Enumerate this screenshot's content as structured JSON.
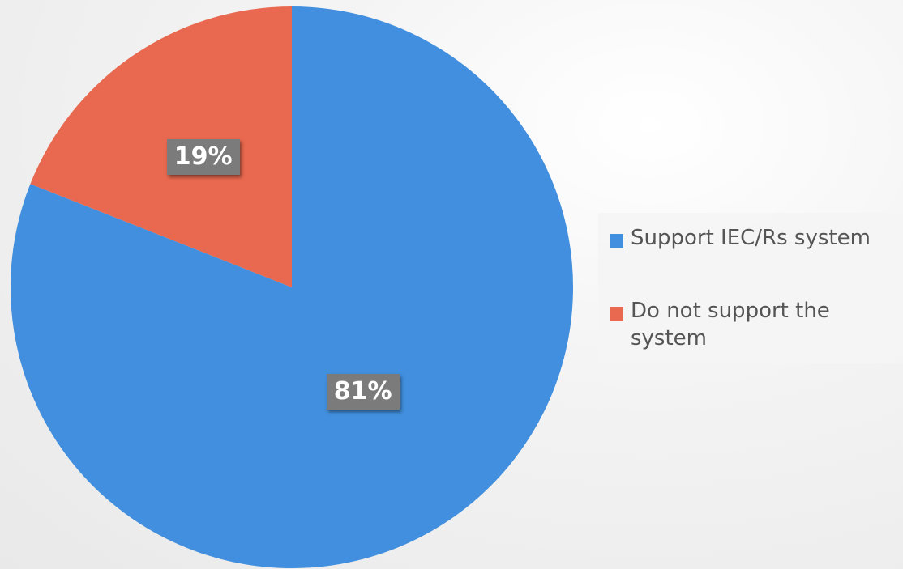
{
  "chart_data": {
    "type": "pie",
    "title": "",
    "categories": [
      "Support IEC/Rs system",
      "Do not support the system"
    ],
    "values": [
      81,
      19
    ],
    "data_labels": [
      "81%",
      "19%"
    ],
    "colors": [
      "#418fde",
      "#e8694f"
    ],
    "start_angle_deg": 0,
    "direction": "clockwise",
    "legend_placement": "right"
  }
}
